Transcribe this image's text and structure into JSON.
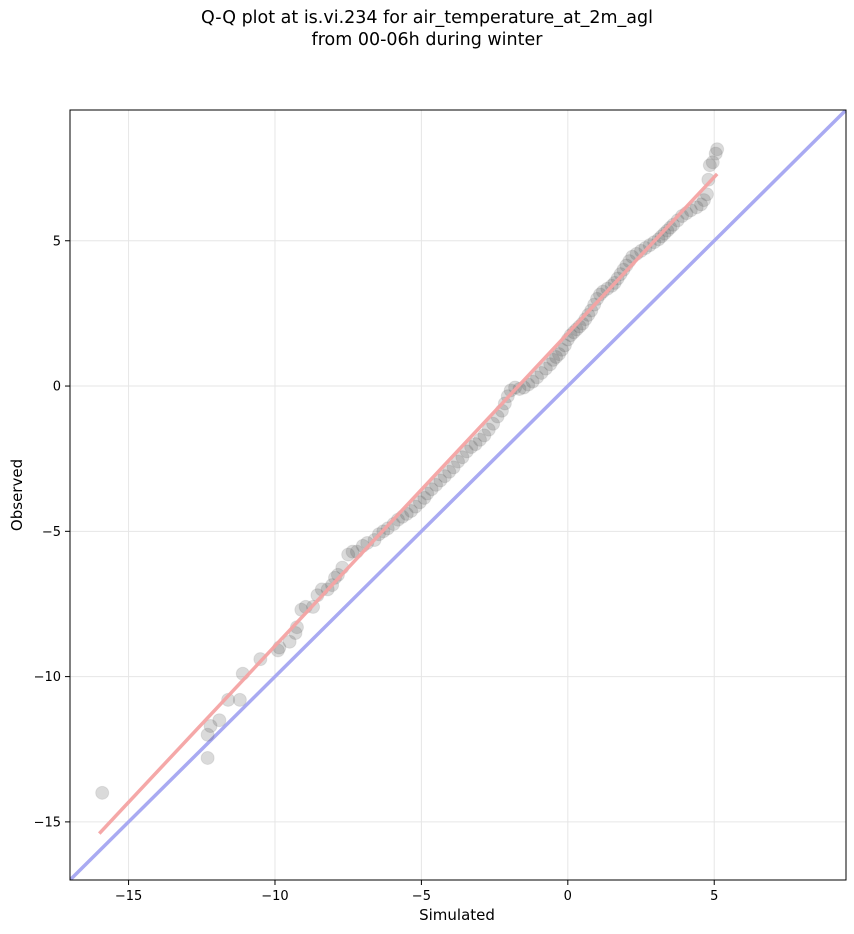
{
  "chart_data": {
    "type": "scatter",
    "title_line1": "Q-Q plot at is.vi.234 for air_temperature_at_2m_agl",
    "title_line2": "from 00-06h during winter",
    "xlabel": "Simulated",
    "ylabel": "Observed",
    "xlim": [
      -17,
      9.5
    ],
    "ylim": [
      -17,
      9.5
    ],
    "xticks": [
      -15,
      -10,
      -5,
      0,
      5
    ],
    "yticks": [
      -15,
      -10,
      -5,
      0,
      5
    ],
    "grid": true,
    "colors": {
      "points": "#555555",
      "fit_line": "#f4a3a3",
      "identity_line": "#a9aaf2"
    },
    "identity_line": {
      "x": [
        -17,
        9.5
      ],
      "y": [
        -17,
        9.5
      ]
    },
    "fit_line": {
      "x": [
        -16.0,
        5.1
      ],
      "y": [
        -15.4,
        7.3
      ]
    },
    "points": [
      [
        -15.9,
        -14.0
      ],
      [
        -12.3,
        -12.8
      ],
      [
        -12.3,
        -12.0
      ],
      [
        -12.2,
        -11.7
      ],
      [
        -11.9,
        -11.5
      ],
      [
        -11.6,
        -10.8
      ],
      [
        -11.2,
        -10.8
      ],
      [
        -11.1,
        -9.9
      ],
      [
        -10.5,
        -9.4
      ],
      [
        -9.9,
        -9.1
      ],
      [
        -9.85,
        -9.0
      ],
      [
        -9.5,
        -8.8
      ],
      [
        -9.3,
        -8.5
      ],
      [
        -9.25,
        -8.3
      ],
      [
        -9.1,
        -7.7
      ],
      [
        -8.95,
        -7.6
      ],
      [
        -8.7,
        -7.6
      ],
      [
        -8.55,
        -7.2
      ],
      [
        -8.4,
        -7.0
      ],
      [
        -8.2,
        -7.0
      ],
      [
        -8.05,
        -6.85
      ],
      [
        -7.95,
        -6.6
      ],
      [
        -7.85,
        -6.5
      ],
      [
        -7.7,
        -6.25
      ],
      [
        -7.5,
        -5.8
      ],
      [
        -7.35,
        -5.7
      ],
      [
        -7.2,
        -5.7
      ],
      [
        -7.0,
        -5.5
      ],
      [
        -6.85,
        -5.4
      ],
      [
        -6.6,
        -5.3
      ],
      [
        -6.45,
        -5.1
      ],
      [
        -6.3,
        -5.0
      ],
      [
        -6.15,
        -4.9
      ],
      [
        -5.95,
        -4.75
      ],
      [
        -5.8,
        -4.6
      ],
      [
        -5.65,
        -4.5
      ],
      [
        -5.5,
        -4.4
      ],
      [
        -5.35,
        -4.3
      ],
      [
        -5.2,
        -4.15
      ],
      [
        -5.05,
        -4.0
      ],
      [
        -4.9,
        -3.85
      ],
      [
        -4.8,
        -3.7
      ],
      [
        -4.65,
        -3.55
      ],
      [
        -4.5,
        -3.4
      ],
      [
        -4.35,
        -3.25
      ],
      [
        -4.2,
        -3.1
      ],
      [
        -4.05,
        -2.95
      ],
      [
        -3.9,
        -2.8
      ],
      [
        -3.75,
        -2.6
      ],
      [
        -3.6,
        -2.45
      ],
      [
        -3.45,
        -2.25
      ],
      [
        -3.3,
        -2.1
      ],
      [
        -3.15,
        -2.0
      ],
      [
        -3.0,
        -1.85
      ],
      [
        -2.85,
        -1.7
      ],
      [
        -2.7,
        -1.5
      ],
      [
        -2.55,
        -1.3
      ],
      [
        -2.4,
        -1.05
      ],
      [
        -2.25,
        -0.85
      ],
      [
        -2.15,
        -0.6
      ],
      [
        -2.05,
        -0.35
      ],
      [
        -1.95,
        -0.15
      ],
      [
        -1.8,
        -0.05
      ],
      [
        -1.65,
        -0.1
      ],
      [
        -1.5,
        -0.05
      ],
      [
        -1.35,
        0.05
      ],
      [
        -1.2,
        0.15
      ],
      [
        -1.05,
        0.3
      ],
      [
        -0.9,
        0.45
      ],
      [
        -0.75,
        0.6
      ],
      [
        -0.6,
        0.75
      ],
      [
        -0.5,
        0.9
      ],
      [
        -0.4,
        1.0
      ],
      [
        -0.3,
        1.1
      ],
      [
        -0.2,
        1.25
      ],
      [
        -0.1,
        1.4
      ],
      [
        0.0,
        1.6
      ],
      [
        0.1,
        1.75
      ],
      [
        0.2,
        1.85
      ],
      [
        0.3,
        1.95
      ],
      [
        0.4,
        2.05
      ],
      [
        0.5,
        2.15
      ],
      [
        0.6,
        2.3
      ],
      [
        0.7,
        2.45
      ],
      [
        0.8,
        2.6
      ],
      [
        0.9,
        2.8
      ],
      [
        1.0,
        3.0
      ],
      [
        1.1,
        3.15
      ],
      [
        1.2,
        3.25
      ],
      [
        1.35,
        3.35
      ],
      [
        1.5,
        3.45
      ],
      [
        1.6,
        3.55
      ],
      [
        1.7,
        3.7
      ],
      [
        1.8,
        3.85
      ],
      [
        1.9,
        4.0
      ],
      [
        2.0,
        4.15
      ],
      [
        2.1,
        4.3
      ],
      [
        2.2,
        4.45
      ],
      [
        2.35,
        4.55
      ],
      [
        2.5,
        4.65
      ],
      [
        2.65,
        4.75
      ],
      [
        2.8,
        4.85
      ],
      [
        2.95,
        4.95
      ],
      [
        3.1,
        5.05
      ],
      [
        3.2,
        5.15
      ],
      [
        3.3,
        5.25
      ],
      [
        3.4,
        5.35
      ],
      [
        3.5,
        5.45
      ],
      [
        3.6,
        5.55
      ],
      [
        3.75,
        5.7
      ],
      [
        3.9,
        5.85
      ],
      [
        4.05,
        5.95
      ],
      [
        4.2,
        6.05
      ],
      [
        4.4,
        6.15
      ],
      [
        4.55,
        6.25
      ],
      [
        4.65,
        6.4
      ],
      [
        4.75,
        6.6
      ],
      [
        4.8,
        7.1
      ],
      [
        4.85,
        7.6
      ],
      [
        4.95,
        7.7
      ],
      [
        5.05,
        8.0
      ],
      [
        5.1,
        8.15
      ]
    ]
  }
}
